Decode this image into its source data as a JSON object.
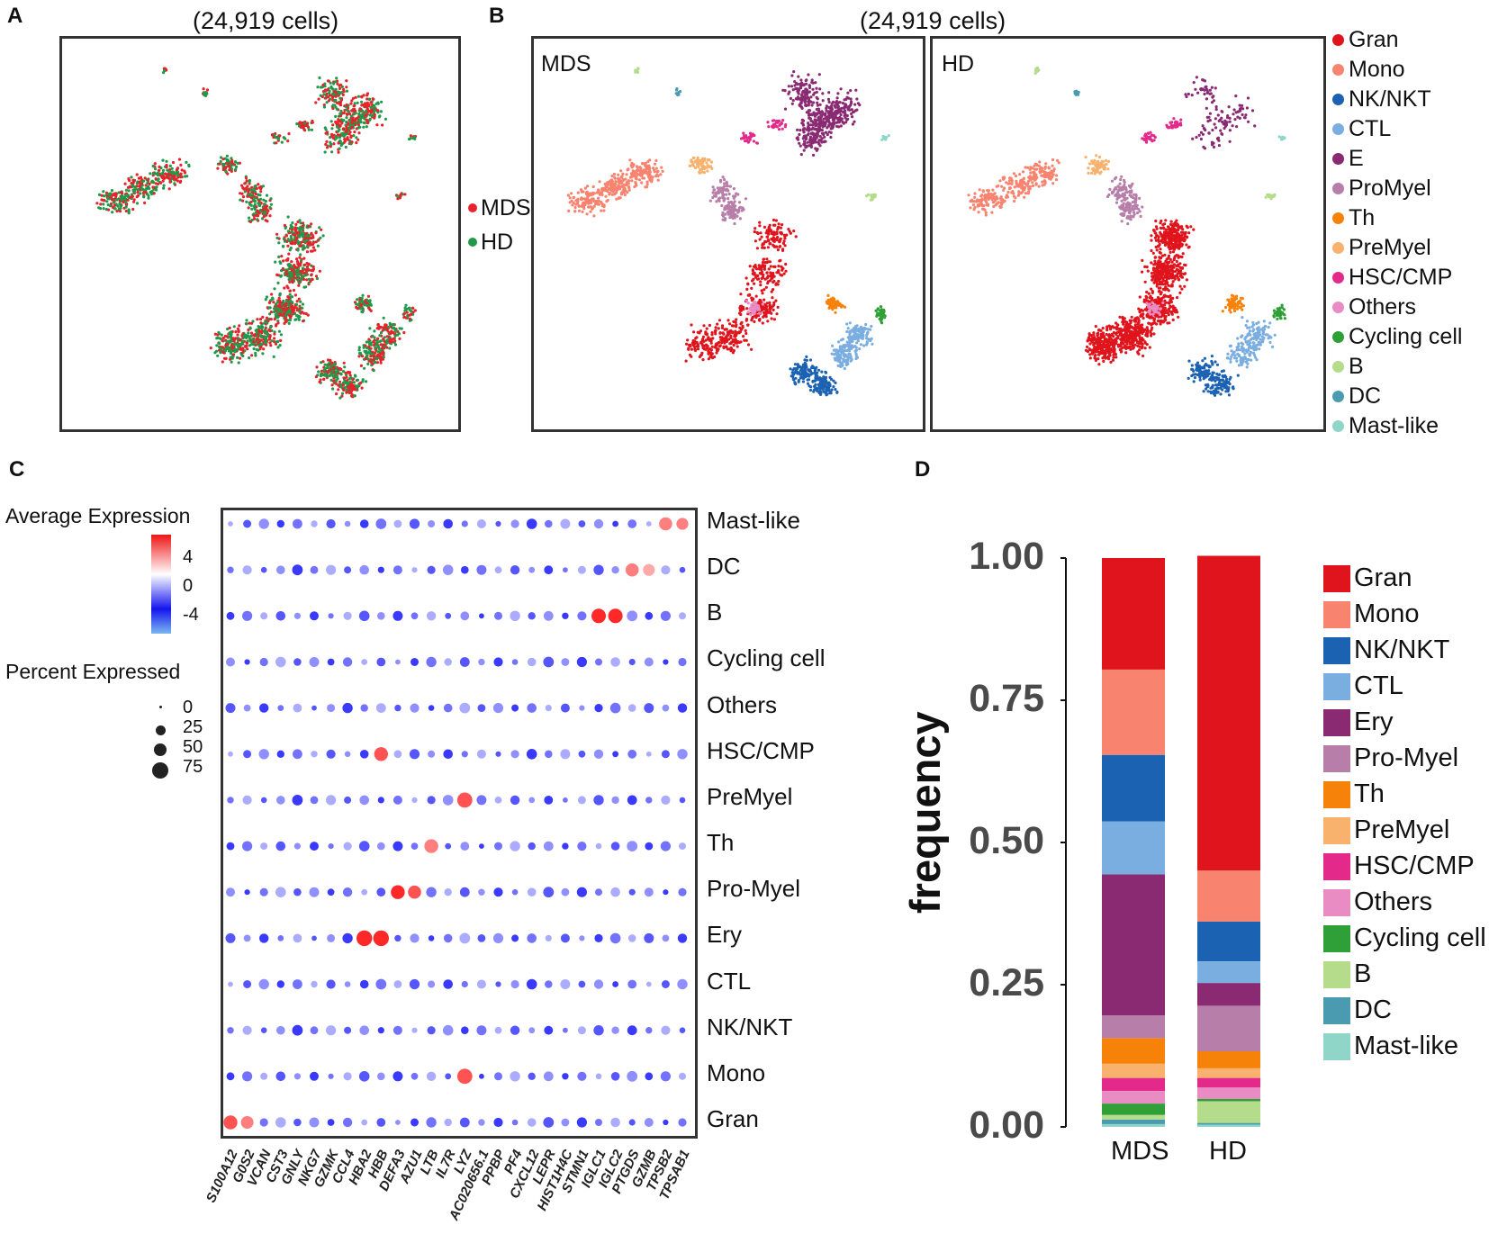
{
  "panels": {
    "a": {
      "letter": "A",
      "title": "(24,919 cells)",
      "legend": [
        {
          "label": "MDS",
          "color": "#e8222a"
        },
        {
          "label": "HD",
          "color": "#1f9a4a"
        }
      ]
    },
    "b": {
      "letter": "B",
      "title": "(24,919 cells)",
      "left_label": "MDS",
      "right_label": "HD"
    },
    "c": {
      "letter": "C",
      "avg_title": "Average Expression",
      "avg_ticks": [
        "4",
        "0",
        "-4"
      ],
      "pct_title": "Percent Expressed",
      "pct_ticks": [
        "0",
        "25",
        "50",
        "75"
      ]
    },
    "d": {
      "letter": "D"
    }
  },
  "cell_types_b": [
    {
      "label": "Gran",
      "color": "#e0141c"
    },
    {
      "label": "Mono",
      "color": "#f8836f"
    },
    {
      "label": "NK/NKT",
      "color": "#1c62b2"
    },
    {
      "label": "CTL",
      "color": "#7aaee0"
    },
    {
      "label": "E",
      "color": "#8a2a72"
    },
    {
      "label": "ProMyel",
      "color": "#b67ea8"
    },
    {
      "label": "Th",
      "color": "#f7820a"
    },
    {
      "label": "PreMyel",
      "color": "#f8b26e"
    },
    {
      "label": "HSC/CMP",
      "color": "#e32a8a"
    },
    {
      "label": "Others",
      "color": "#e98cc4"
    },
    {
      "label": "Cycling cell",
      "color": "#2fa037"
    },
    {
      "label": "B",
      "color": "#b4dc8a"
    },
    {
      "label": "DC",
      "color": "#4a9ab0"
    },
    {
      "label": "Mast-like",
      "color": "#8fd6c8"
    }
  ],
  "chart_data": [
    {
      "type": "scatter",
      "title": "(24,919 cells)",
      "description_series": [
        "MDS",
        "HD"
      ],
      "xlabel": "",
      "ylabel": ""
    },
    {
      "type": "heatmap",
      "subtype": "dotplot",
      "rows": [
        "Mast-like",
        "DC",
        "B",
        "Cycling cell",
        "Others",
        "HSC/CMP",
        "PreMyel",
        "Th",
        "Pro-Myel",
        "Ery",
        "CTL",
        "NK/NKT",
        "Mono",
        "Gran"
      ],
      "genes": [
        "S100A12",
        "G0S2",
        "VCAN",
        "CST3",
        "GNLY",
        "NKG7",
        "GZMK",
        "CCL4",
        "HBA2",
        "HBB",
        "DEFA3",
        "AZU1",
        "LTB",
        "IL7R",
        "LYZ",
        "AC020656.1",
        "PPBP",
        "PF4",
        "CXCL12",
        "LEPR",
        "HIST1H4C",
        "STMN1",
        "IGLC1",
        "IGLC2",
        "PTGDS",
        "GZMB",
        "TPSB2",
        "TPSAB1"
      ],
      "color_range": [
        -4,
        4
      ],
      "size_legend": [
        0,
        25,
        50,
        75
      ],
      "highlights": [
        {
          "row": "Mast-like",
          "gene": "TPSB2",
          "expr": 3,
          "pct": 50
        },
        {
          "row": "Mast-like",
          "gene": "TPSAB1",
          "expr": 3,
          "pct": 40
        },
        {
          "row": "DC",
          "gene": "PTGDS",
          "expr": 3,
          "pct": 50
        },
        {
          "row": "DC",
          "gene": "GZMB",
          "expr": 2,
          "pct": 40
        },
        {
          "row": "B",
          "gene": "IGLC1",
          "expr": 5,
          "pct": 60
        },
        {
          "row": "B",
          "gene": "IGLC2",
          "expr": 5,
          "pct": 60
        },
        {
          "row": "HSC/CMP",
          "gene": "HBB",
          "expr": 4,
          "pct": 55
        },
        {
          "row": "PreMyel",
          "gene": "LYZ",
          "expr": 4,
          "pct": 65
        },
        {
          "row": "Th",
          "gene": "LTB",
          "expr": 3,
          "pct": 55
        },
        {
          "row": "Pro-Myel",
          "gene": "DEFA3",
          "expr": 5,
          "pct": 55
        },
        {
          "row": "Pro-Myel",
          "gene": "AZU1",
          "expr": 4,
          "pct": 50
        },
        {
          "row": "Ery",
          "gene": "HBA2",
          "expr": 5,
          "pct": 70
        },
        {
          "row": "Ery",
          "gene": "HBB",
          "expr": 5,
          "pct": 70
        },
        {
          "row": "Mono",
          "gene": "LYZ",
          "expr": 4,
          "pct": 65
        },
        {
          "row": "Gran",
          "gene": "S100A12",
          "expr": 4,
          "pct": 55
        },
        {
          "row": "Gran",
          "gene": "G0S2",
          "expr": 3,
          "pct": 45
        }
      ]
    },
    {
      "type": "bar",
      "stacked": true,
      "categories": [
        "MDS",
        "HD"
      ],
      "ylabel": "frequency",
      "ylim": [
        0,
        1
      ],
      "yticks": [
        "0.00",
        "0.25",
        "0.50",
        "0.75",
        "1.00"
      ],
      "series": [
        {
          "name": "Mast-like",
          "color": "#8fd6c8",
          "values": [
            0.005,
            0.004
          ]
        },
        {
          "name": "DC",
          "color": "#4a9ab0",
          "values": [
            0.008,
            0.003
          ]
        },
        {
          "name": "B",
          "color": "#b4dc8a",
          "values": [
            0.008,
            0.038
          ]
        },
        {
          "name": "Cycling cell",
          "color": "#2fa037",
          "values": [
            0.02,
            0.004
          ]
        },
        {
          "name": "Others",
          "color": "#e98cc4",
          "values": [
            0.022,
            0.02
          ]
        },
        {
          "name": "HSC/CMP",
          "color": "#e32a8a",
          "values": [
            0.023,
            0.017
          ]
        },
        {
          "name": "PreMyel",
          "color": "#f8b26e",
          "values": [
            0.025,
            0.017
          ]
        },
        {
          "name": "Th",
          "color": "#f7820a",
          "values": [
            0.045,
            0.03
          ]
        },
        {
          "name": "Pro-Myel",
          "color": "#b67ea8",
          "values": [
            0.04,
            0.08
          ]
        },
        {
          "name": "Ery",
          "color": "#8a2a72",
          "values": [
            0.248,
            0.04
          ]
        },
        {
          "name": "CTL",
          "color": "#7aaee0",
          "values": [
            0.093,
            0.038
          ]
        },
        {
          "name": "NK/NKT",
          "color": "#1c62b2",
          "values": [
            0.117,
            0.07
          ]
        },
        {
          "name": "Mono",
          "color": "#f8836f",
          "values": [
            0.15,
            0.09
          ]
        },
        {
          "name": "Gran",
          "color": "#e0141c",
          "values": [
            0.196,
            0.553
          ]
        }
      ],
      "legend": [
        "Gran",
        "Mono",
        "NK/NKT",
        "CTL",
        "Ery",
        "Pro-Myel",
        "Th",
        "PreMyel",
        "HSC/CMP",
        "Others",
        "Cycling cell",
        "B",
        "DC",
        "Mast-like"
      ]
    }
  ]
}
